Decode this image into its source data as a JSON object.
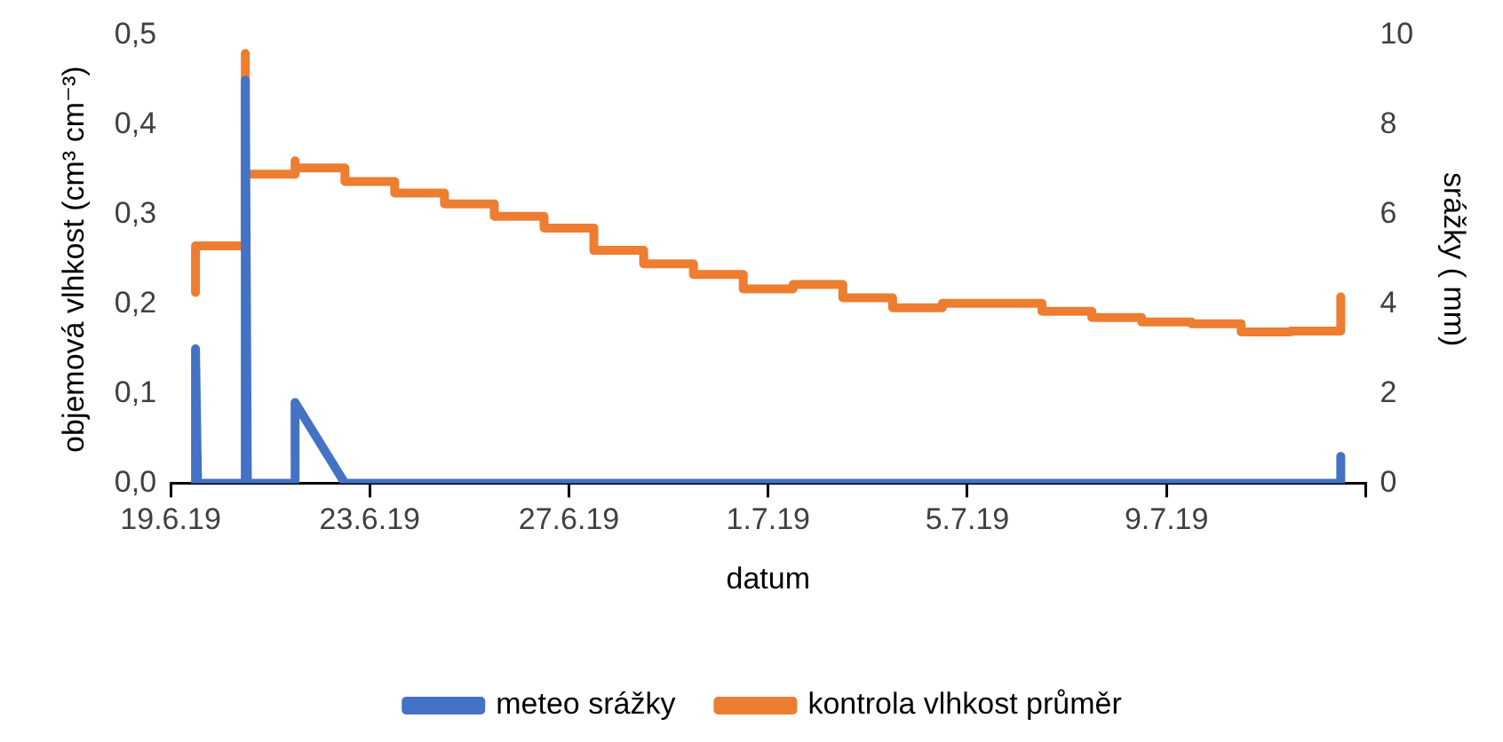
{
  "chart_data": {
    "type": "line",
    "xlabel": "datum",
    "ylabel": "objemová vlhkost (cm³ cm⁻³)",
    "y2label": "srážky ( mm)",
    "xlim": [
      "--06-19",
      "--07-13"
    ],
    "xticks": [
      {
        "value": "--06-19",
        "label": "19.6.19"
      },
      {
        "value": "--06-23",
        "label": "23.6.19"
      },
      {
        "value": "--06-27",
        "label": "27.6.19"
      },
      {
        "value": "--07-01",
        "label": "1.7.19"
      },
      {
        "value": "--07-05",
        "label": "5.7.19"
      },
      {
        "value": "--07-09",
        "label": "9.7.19"
      },
      {
        "value": "--07-13",
        "label": null
      }
    ],
    "ylim": [
      0,
      0.5
    ],
    "yticks": [
      {
        "value": 0,
        "label": "0,0"
      },
      {
        "value": 0.1,
        "label": "0,1"
      },
      {
        "value": 0.2,
        "label": "0,2"
      },
      {
        "value": 0.3,
        "label": "0,3"
      },
      {
        "value": 0.4,
        "label": "0,4"
      },
      {
        "value": 0.5,
        "label": "0,5"
      }
    ],
    "y2lim": [
      0,
      10
    ],
    "y2ticks": [
      0,
      2,
      4,
      6,
      8,
      10
    ],
    "grid": false,
    "legend": "bottom",
    "marker": "none",
    "line_style": "solid",
    "series": [
      {
        "name": "kontrola vlhkost průměr",
        "color": "#ed7d31",
        "x": [
          "--06-19T12:00",
          "--06-19T12:00",
          "--06-20T12:00",
          "--06-20T12:00",
          "--06-20T12:00",
          "--06-21T12:00",
          "--06-21T12:00",
          "--06-21T12:00",
          "--06-22T12:00",
          "--06-22T12:00",
          "--06-23T12:00",
          "--06-23T12:00",
          "--06-24T12:00",
          "--06-24T12:00",
          "--06-25T12:00",
          "--06-25T12:00",
          "--06-26T12:00",
          "--06-26T12:00",
          "--06-27T12:00",
          "--06-27T12:00",
          "--06-28T12:00",
          "--06-28T12:00",
          "--06-29T12:00",
          "--06-29T12:00",
          "--06-30T12:00",
          "--06-30T12:00",
          "--07-01T12:00",
          "--07-01T12:00",
          "--07-02T12:00",
          "--07-02T12:00",
          "--07-03T12:00",
          "--07-03T12:00",
          "--07-04T12:00",
          "--07-04T12:00",
          "--07-05T12:00",
          "--07-05T12:00",
          "--07-06T12:00",
          "--07-06T12:00",
          "--07-07T12:00",
          "--07-07T12:00",
          "--07-08T12:00",
          "--07-08T12:00",
          "--07-09T12:00",
          "--07-09T12:00",
          "--07-10T12:00",
          "--07-10T12:00",
          "--07-11T12:00",
          "--07-11T12:00",
          "--07-12T12:00",
          "--07-12T12:00"
        ],
        "values": [
          0.213,
          0.265,
          0.265,
          0.48,
          0.345,
          0.345,
          0.36,
          0.352,
          0.352,
          0.337,
          0.337,
          0.324,
          0.324,
          0.312,
          0.312,
          0.298,
          0.298,
          0.285,
          0.285,
          0.26,
          0.26,
          0.245,
          0.245,
          0.233,
          0.233,
          0.217,
          0.217,
          0.222,
          0.222,
          0.207,
          0.207,
          0.196,
          0.196,
          0.201,
          0.201,
          0.201,
          0.201,
          0.192,
          0.192,
          0.185,
          0.185,
          0.18,
          0.18,
          0.178,
          0.178,
          0.169,
          0.169,
          0.17,
          0.17,
          0.208
        ]
      },
      {
        "name": "meteo srážky",
        "color": "#4472c4",
        "axis": "y2",
        "x": [
          "--06-19T12:00",
          "--06-19T12:00",
          "--06-19T13:00",
          "--06-20T12:00",
          "--06-20T12:00",
          "--06-20T13:00",
          "--06-21T12:00",
          "--06-21T12:00",
          "--06-22T12:00",
          "--07-12T12:00",
          "--07-12T12:00"
        ],
        "values": [
          0,
          3.0,
          0,
          0,
          9.0,
          0,
          0,
          1.8,
          0,
          0,
          0.6
        ]
      }
    ]
  }
}
